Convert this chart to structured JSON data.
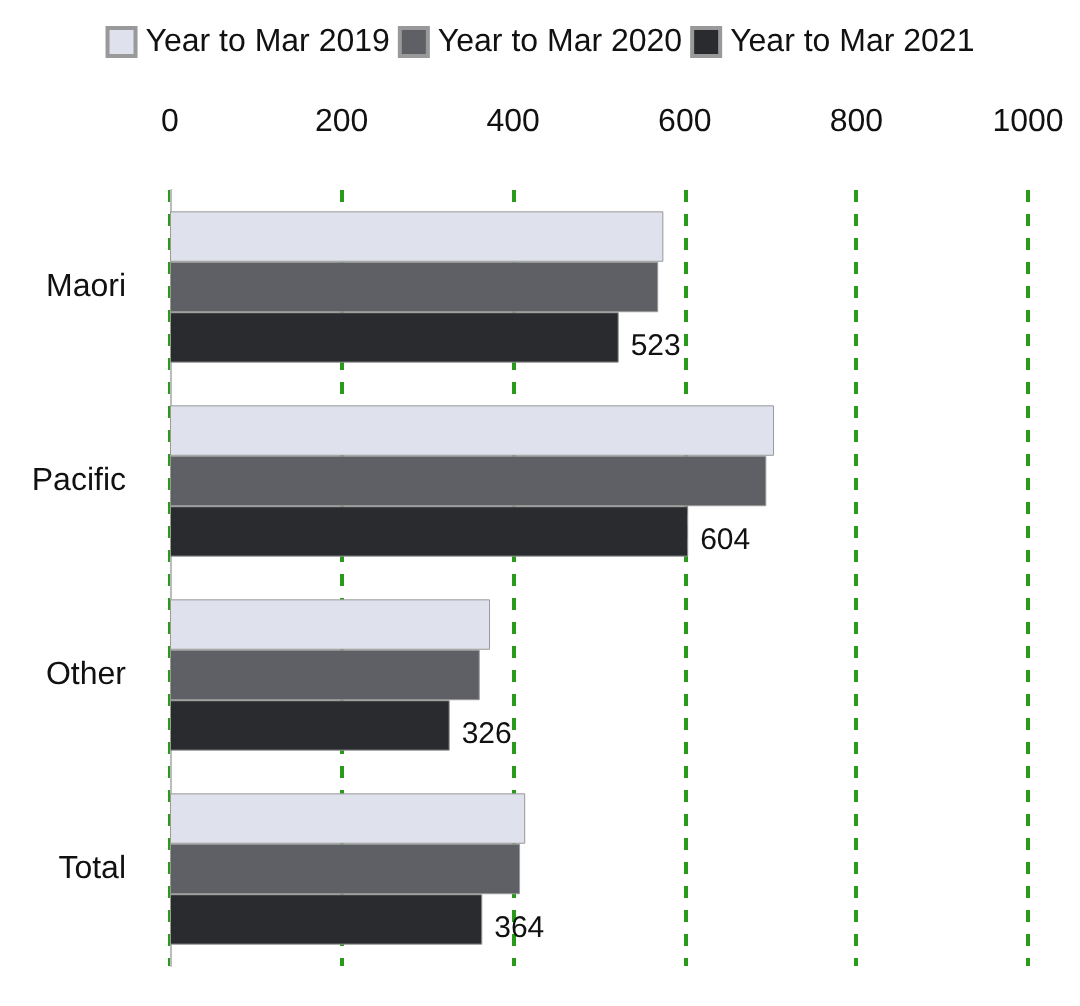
{
  "chart_data": {
    "type": "bar",
    "orientation": "horizontal",
    "categories": [
      "Maori",
      "Pacific",
      "Other",
      "Total"
    ],
    "series": [
      {
        "name": "Year to Mar 2019",
        "color": "#dfe1ec",
        "values": [
          575,
          704,
          373,
          414
        ]
      },
      {
        "name": "Year to Mar 2020",
        "color": "#5f6065",
        "values": [
          569,
          695,
          361,
          408
        ]
      },
      {
        "name": "Year to Mar 2021",
        "color": "#2a2b2e",
        "values": [
          523,
          604,
          326,
          364
        ],
        "value_labels": [
          "523",
          "604",
          "326",
          "364"
        ]
      }
    ],
    "xlim": [
      0,
      1000
    ],
    "xticks": [
      0,
      200,
      400,
      600,
      800,
      1000
    ],
    "grid": "x",
    "legend": "top"
  }
}
